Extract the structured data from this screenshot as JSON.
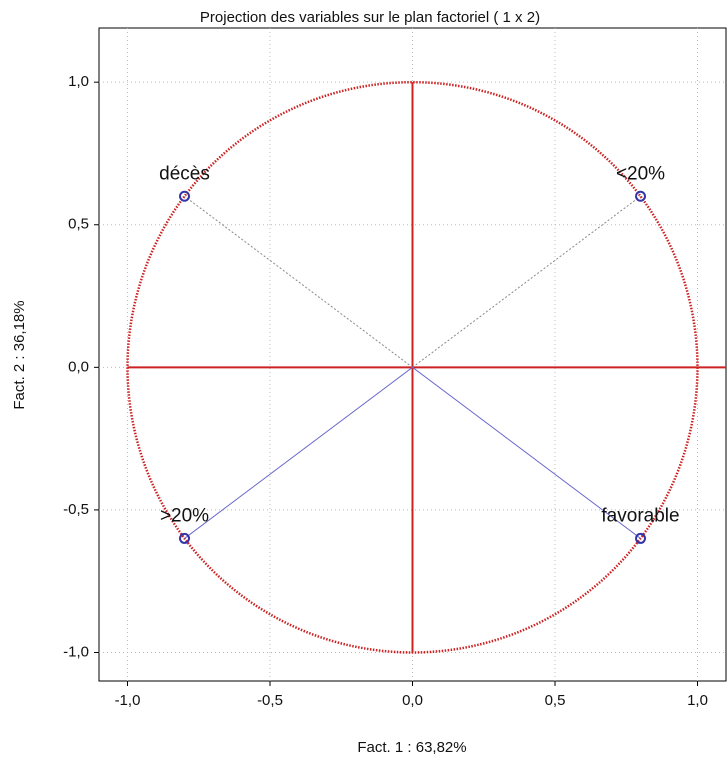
{
  "chart_data": {
    "type": "scatter",
    "title": "Projection des variables sur le plan factoriel ( 1 x   2)",
    "x_label": "Fact. 1  : 63,82%",
    "y_label": "Fact. 2  : 36,18%",
    "labels": [
      "décès",
      "<20%",
      ">20%",
      "favorable"
    ],
    "x": [
      -0.8,
      0.8,
      -0.8,
      0.8
    ],
    "series": [
      {
        "color": "#3333aa",
        "values": [
          0.6,
          0.6,
          -0.6,
          -0.6
        ]
      }
    ],
    "ray_colors": [
      "#888888",
      "#888888",
      "#6a6acd",
      "#6a6acd"
    ],
    "circle_color": "#cc2222",
    "xlim": [
      -1.1,
      1.1
    ],
    "ylim": [
      -1.1,
      1.19
    ],
    "xticks": [
      {
        "value": -1,
        "label": "-1,0"
      },
      {
        "value": -0.5,
        "label": "-0,5"
      },
      {
        "value": 0,
        "label": "0,0"
      },
      {
        "value": 0.5,
        "label": "0,5"
      },
      {
        "value": 1,
        "label": "1,0"
      }
    ],
    "yticks": [
      {
        "value": -1,
        "label": "-1,0"
      },
      {
        "value": -0.5,
        "label": "-0,5"
      },
      {
        "value": 0,
        "label": "0,0"
      },
      {
        "value": 0.5,
        "label": "0,5"
      },
      {
        "value": 1,
        "label": "1,0"
      }
    ],
    "grid": true
  }
}
